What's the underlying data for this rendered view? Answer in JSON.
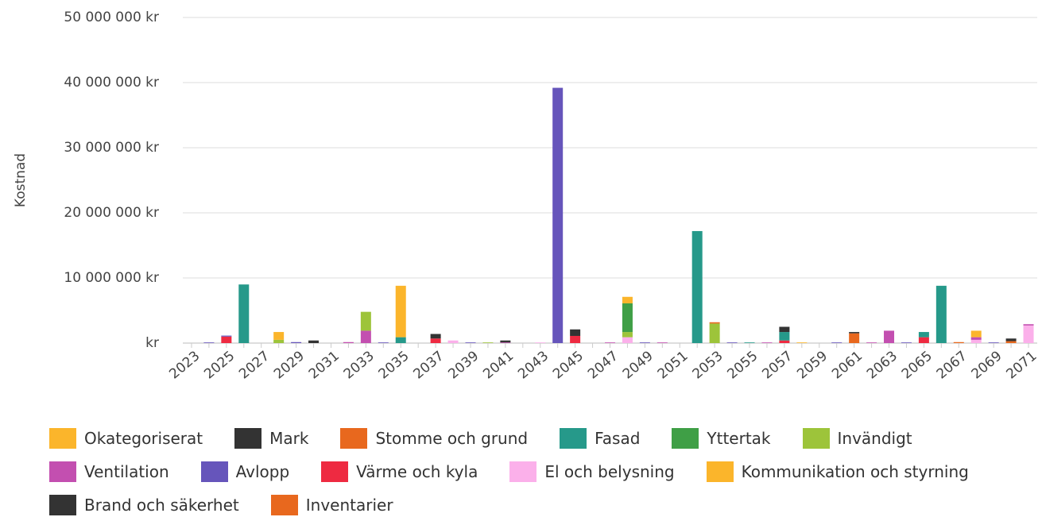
{
  "chart_data": {
    "type": "stacked-bar",
    "y_label": "Kostnad",
    "categories": [
      "2023",
      null,
      "2025",
      null,
      "2027",
      null,
      "2029",
      null,
      "2031",
      null,
      "2033",
      null,
      "2035",
      null,
      "2037",
      null,
      "2039",
      null,
      "2041",
      null,
      "2043",
      null,
      "2045",
      null,
      "2047",
      null,
      "2049",
      null,
      "2051",
      null,
      "2053",
      null,
      "2055",
      null,
      "2057",
      null,
      "2059",
      null,
      "2061",
      null,
      "2063",
      null,
      "2065",
      null,
      "2067",
      null,
      "2069",
      null,
      "2071"
    ],
    "ylim": [
      0,
      50000000
    ],
    "yticks": [
      {
        "value": 0,
        "label": "kr"
      },
      {
        "value": 10000000,
        "label": "10 000 000 kr"
      },
      {
        "value": 20000000,
        "label": "20 000 000 kr"
      },
      {
        "value": 30000000,
        "label": "30 000 000 kr"
      },
      {
        "value": 40000000,
        "label": "40 000 000 kr"
      },
      {
        "value": 50000000,
        "label": "50 000 000 kr"
      }
    ],
    "grid": true,
    "series": [
      {
        "name": "Okategoriserat",
        "color": "#fbb52b",
        "values": [
          0,
          0,
          0,
          0,
          0,
          1200000,
          0,
          0,
          0,
          0,
          0,
          0,
          7900000,
          0,
          0,
          0,
          0,
          0,
          0,
          0,
          0,
          0,
          0,
          0,
          0,
          1000000,
          0,
          0,
          0,
          0,
          0,
          0,
          0,
          0,
          0,
          100000,
          0,
          0,
          0,
          0,
          0,
          0,
          0,
          0,
          0,
          1000000,
          0,
          0,
          0
        ]
      },
      {
        "name": "Mark",
        "color": "#333333",
        "values": [
          0,
          0,
          0,
          0,
          0,
          0,
          0,
          400000,
          0,
          0,
          0,
          0,
          0,
          0,
          700000,
          0,
          0,
          0,
          300000,
          0,
          0,
          0,
          1000000,
          0,
          0,
          0,
          0,
          0,
          0,
          0,
          0,
          0,
          0,
          0,
          800000,
          0,
          0,
          0,
          200000,
          0,
          0,
          0,
          0,
          0,
          0,
          0,
          0,
          400000,
          0
        ]
      },
      {
        "name": "Stomme och grund",
        "color": "#e8681e",
        "values": [
          0,
          0,
          0,
          0,
          0,
          0,
          0,
          0,
          0,
          0,
          0,
          0,
          0,
          0,
          0,
          0,
          0,
          0,
          0,
          0,
          0,
          0,
          0,
          0,
          0,
          0,
          0,
          0,
          0,
          0,
          200000,
          0,
          0,
          0,
          0,
          0,
          0,
          0,
          1500000,
          0,
          0,
          0,
          0,
          0,
          150000,
          0,
          0,
          300000,
          0
        ]
      },
      {
        "name": "Fasad",
        "color": "#26998a",
        "values": [
          0,
          0,
          0,
          9000000,
          0,
          0,
          0,
          0,
          0,
          0,
          0,
          0,
          900000,
          0,
          0,
          0,
          0,
          0,
          0,
          0,
          0,
          0,
          0,
          0,
          0,
          0,
          0,
          0,
          0,
          17200000,
          0,
          0,
          100000,
          0,
          1300000,
          0,
          0,
          0,
          0,
          0,
          0,
          0,
          800000,
          8800000,
          0,
          0,
          0,
          0,
          0
        ]
      },
      {
        "name": "Yttertak",
        "color": "#3f9f46",
        "values": [
          0,
          0,
          0,
          0,
          0,
          0,
          0,
          0,
          0,
          0,
          0,
          0,
          0,
          0,
          0,
          0,
          0,
          0,
          0,
          0,
          0,
          0,
          0,
          0,
          0,
          4400000,
          0,
          0,
          0,
          0,
          0,
          0,
          0,
          0,
          0,
          0,
          0,
          0,
          0,
          0,
          0,
          0,
          0,
          0,
          0,
          0,
          0,
          0,
          0
        ]
      },
      {
        "name": "Invändigt",
        "color": "#9dc43a",
        "values": [
          0,
          0,
          0,
          0,
          0,
          500000,
          0,
          0,
          0,
          0,
          2900000,
          0,
          0,
          0,
          0,
          0,
          0,
          100000,
          0,
          0,
          0,
          0,
          0,
          0,
          0,
          800000,
          0,
          0,
          0,
          0,
          3000000,
          0,
          0,
          0,
          0,
          0,
          0,
          0,
          0,
          0,
          0,
          0,
          0,
          0,
          0,
          0,
          0,
          0,
          0
        ]
      },
      {
        "name": "Ventilation",
        "color": "#c34fb0",
        "values": [
          0,
          0,
          0,
          0,
          0,
          0,
          0,
          0,
          0,
          150000,
          1900000,
          0,
          0,
          0,
          0,
          0,
          0,
          0,
          100000,
          0,
          0,
          0,
          0,
          0,
          100000,
          0,
          0,
          100000,
          0,
          0,
          0,
          0,
          0,
          100000,
          0,
          0,
          0,
          0,
          0,
          100000,
          1900000,
          0,
          0,
          0,
          0,
          400000,
          0,
          0,
          200000
        ]
      },
      {
        "name": "Avlopp",
        "color": "#6655bb",
        "values": [
          0,
          100000,
          150000,
          0,
          0,
          0,
          150000,
          0,
          0,
          0,
          0,
          100000,
          0,
          0,
          0,
          0,
          100000,
          0,
          0,
          0,
          0,
          39200000,
          0,
          0,
          0,
          0,
          100000,
          0,
          0,
          0,
          0,
          100000,
          0,
          0,
          0,
          0,
          0,
          100000,
          0,
          0,
          0,
          100000,
          0,
          0,
          0,
          0,
          100000,
          0,
          0
        ]
      },
      {
        "name": "Värme och kyla",
        "color": "#ee2a41",
        "values": [
          0,
          0,
          1000000,
          0,
          0,
          0,
          0,
          0,
          0,
          0,
          0,
          0,
          0,
          0,
          700000,
          0,
          0,
          0,
          0,
          0,
          0,
          0,
          1100000,
          0,
          0,
          0,
          0,
          0,
          0,
          0,
          0,
          0,
          0,
          0,
          400000,
          0,
          0,
          0,
          0,
          0,
          0,
          0,
          900000,
          0,
          0,
          0,
          0,
          0,
          0
        ]
      },
      {
        "name": "El och belysning",
        "color": "#fbb0ea",
        "values": [
          0,
          0,
          0,
          0,
          0,
          0,
          0,
          0,
          0,
          0,
          0,
          0,
          0,
          0,
          0,
          400000,
          0,
          0,
          0,
          0,
          100000,
          0,
          0,
          0,
          0,
          900000,
          0,
          0,
          0,
          0,
          0,
          0,
          0,
          0,
          0,
          0,
          0,
          0,
          0,
          0,
          0,
          0,
          0,
          0,
          0,
          500000,
          0,
          0,
          2700000
        ]
      },
      {
        "name": "Kommunikation och styrning",
        "color": "#fbb52b",
        "values": [
          0,
          0,
          0,
          0,
          0,
          0,
          0,
          0,
          0,
          0,
          0,
          0,
          0,
          0,
          0,
          0,
          0,
          0,
          0,
          0,
          0,
          0,
          0,
          0,
          0,
          0,
          0,
          0,
          0,
          0,
          0,
          0,
          0,
          0,
          0,
          0,
          0,
          0,
          0,
          0,
          0,
          0,
          0,
          0,
          0,
          0,
          0,
          0,
          0
        ]
      },
      {
        "name": "Brand och säkerhet",
        "color": "#333333",
        "values": [
          0,
          0,
          0,
          0,
          0,
          0,
          0,
          0,
          0,
          0,
          0,
          0,
          0,
          0,
          0,
          0,
          0,
          0,
          0,
          0,
          0,
          0,
          0,
          0,
          0,
          0,
          0,
          0,
          0,
          0,
          0,
          0,
          0,
          0,
          0,
          0,
          0,
          0,
          0,
          0,
          0,
          0,
          0,
          0,
          0,
          0,
          0,
          0,
          0
        ]
      },
      {
        "name": "Inventarier",
        "color": "#e8681e",
        "values": [
          0,
          0,
          0,
          0,
          0,
          0,
          0,
          0,
          0,
          0,
          0,
          0,
          0,
          0,
          0,
          0,
          0,
          0,
          0,
          0,
          0,
          0,
          0,
          0,
          0,
          0,
          0,
          0,
          0,
          0,
          0,
          0,
          0,
          0,
          0,
          0,
          0,
          0,
          0,
          0,
          0,
          0,
          0,
          0,
          0,
          0,
          0,
          0,
          0
        ]
      }
    ]
  }
}
